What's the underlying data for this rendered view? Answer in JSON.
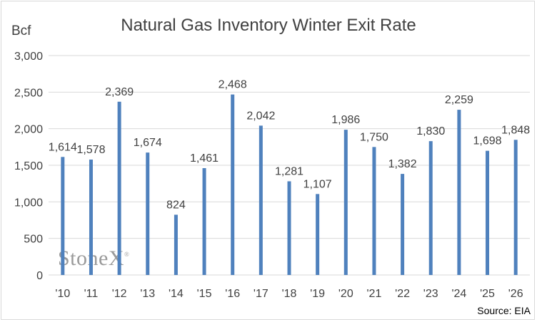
{
  "chart_data": {
    "type": "bar",
    "title": "Natural Gas Inventory Winter Exit Rate",
    "ylabel": "Bcf",
    "xlabel": "",
    "categories": [
      "'10",
      "'11",
      "'12",
      "'13",
      "'14",
      "'15",
      "'16",
      "'17",
      "'18",
      "'19",
      "'20",
      "'21",
      "'22",
      "'23",
      "'24",
      "'25",
      "'26"
    ],
    "values": [
      1614,
      1578,
      2369,
      1674,
      824,
      1461,
      2468,
      2042,
      1281,
      1107,
      1986,
      1750,
      1382,
      1830,
      2259,
      1698,
      1848
    ],
    "data_labels": [
      "1,614",
      "1,578",
      "2,369",
      "1,674",
      "824",
      "1,461",
      "2,468",
      "2,042",
      "1,281",
      "1,107",
      "1,986",
      "1,750",
      "1,382",
      "1,830",
      "2,259",
      "1,698",
      "1,848"
    ],
    "ylim": [
      0,
      3000
    ],
    "yticks": [
      0,
      500,
      1000,
      1500,
      2000,
      2500,
      3000
    ],
    "ytick_labels": [
      "0",
      "500",
      "1,000",
      "1,500",
      "2,000",
      "2,500",
      "3,000"
    ],
    "grid": true,
    "legend": "none",
    "bar_color": "#4f81bd",
    "grid_color": "#d9d9d9",
    "source": "Source: EIA"
  },
  "watermark": {
    "text": "StoneX",
    "mark": "®"
  }
}
